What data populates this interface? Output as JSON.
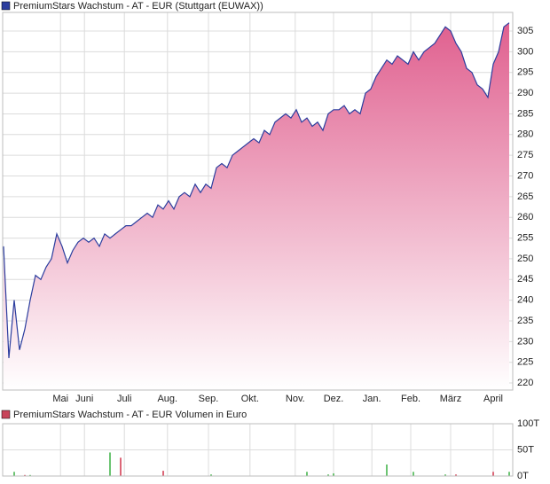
{
  "chart_data": [
    {
      "type": "line",
      "title": "PremiumStars Wachstum - AT - EUR (Stuttgart (EUWAX))",
      "color": "#2b3d9e",
      "fill": "#e0608f",
      "values": [
        253,
        226,
        240,
        228,
        233,
        240,
        246,
        245,
        248,
        250,
        256,
        253,
        249,
        252,
        254,
        255,
        254,
        255,
        253,
        256,
        255,
        256,
        257,
        258,
        258,
        259,
        260,
        261,
        260,
        263,
        262,
        264,
        262,
        265,
        266,
        265,
        268,
        266,
        268,
        267,
        272,
        273,
        272,
        275,
        276,
        277,
        278,
        279,
        278,
        281,
        280,
        283,
        284,
        285,
        284,
        286,
        283,
        284,
        282,
        283,
        281,
        285,
        286,
        286,
        287,
        285,
        286,
        285,
        290,
        291,
        294,
        296,
        298,
        297,
        299,
        298,
        297,
        300,
        298,
        300,
        301,
        302,
        304,
        306,
        305,
        302,
        300,
        296,
        295,
        292,
        291,
        289,
        297,
        300,
        306,
        307
      ],
      "xlim": [
        0,
        95
      ],
      "xticks": [
        {
          "value": 10.7,
          "label": "Mai"
        },
        {
          "value": 15.2,
          "label": "Juni"
        },
        {
          "value": 22.7,
          "label": "Juli"
        },
        {
          "value": 30.8,
          "label": "Aug."
        },
        {
          "value": 38.5,
          "label": "Sep."
        },
        {
          "value": 46.3,
          "label": "Okt."
        },
        {
          "value": 54.8,
          "label": "Nov."
        },
        {
          "value": 62,
          "label": "Dez."
        },
        {
          "value": 69.2,
          "label": "Jan."
        },
        {
          "value": 76.5,
          "label": "Feb."
        },
        {
          "value": 84,
          "label": "März"
        },
        {
          "value": 92,
          "label": "April"
        }
      ],
      "ylim": [
        218.3,
        309.5
      ],
      "yticks": [
        220,
        225,
        230,
        235,
        240,
        245,
        250,
        255,
        260,
        265,
        270,
        275,
        280,
        285,
        290,
        295,
        300,
        305
      ],
      "grid": true
    },
    {
      "type": "bar",
      "title": "PremiumStars Wachstum - AT - EUR Volumen in Euro",
      "color": "#c8455a",
      "x": [
        2,
        4,
        5,
        20,
        22,
        30,
        39,
        57,
        61,
        62,
        72,
        77,
        83,
        85,
        92,
        95
      ],
      "values": [
        8,
        2,
        2,
        45,
        35,
        10,
        3,
        8,
        3,
        5,
        22,
        8,
        3,
        3,
        8,
        8
      ],
      "colors": [
        "#3cb043",
        "#d0344a",
        "#3cb043",
        "#3cb043",
        "#d0344a",
        "#d0344a",
        "#3cb043",
        "#3cb043",
        "#3cb043",
        "#3cb043",
        "#3cb043",
        "#3cb043",
        "#3cb043",
        "#d0344a",
        "#d0344a",
        "#3cb043"
      ],
      "xlim": [
        0,
        95
      ],
      "ylim": [
        0,
        100
      ],
      "yticks": [
        {
          "value": 0,
          "label": "0T"
        },
        {
          "value": 50,
          "label": "50T"
        },
        {
          "value": 100,
          "label": "100T"
        }
      ],
      "grid": true
    }
  ]
}
